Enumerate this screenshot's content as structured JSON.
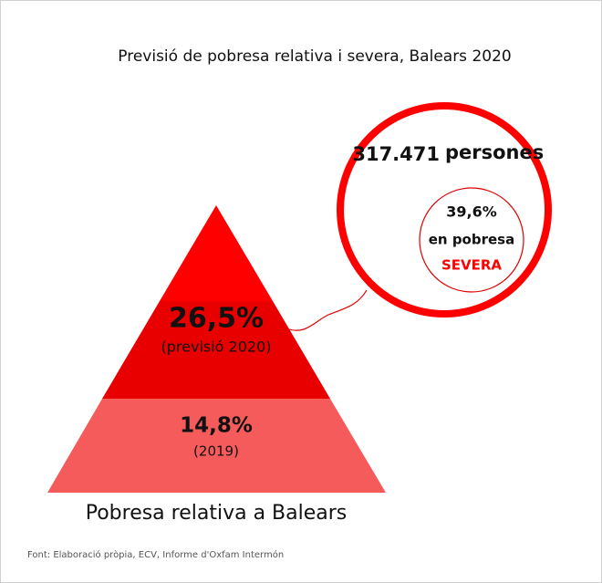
{
  "title": "Previsió de pobresa relativa i severa, Balears 2020",
  "pyramid": {
    "top": {
      "value": "26,5%",
      "note": "(previsió 2020)"
    },
    "bottom": {
      "value": "14,8%",
      "note": "(2019)"
    },
    "caption": "Pobresa relativa a Balears"
  },
  "bubble": {
    "count": "317.471",
    "unit": "persones",
    "share": "39,6%",
    "line1": "en pobresa",
    "line2": "SEVERA"
  },
  "source": "Font: Elaboració pròpia, ECV, Informe d'Oxfam Intermón"
}
